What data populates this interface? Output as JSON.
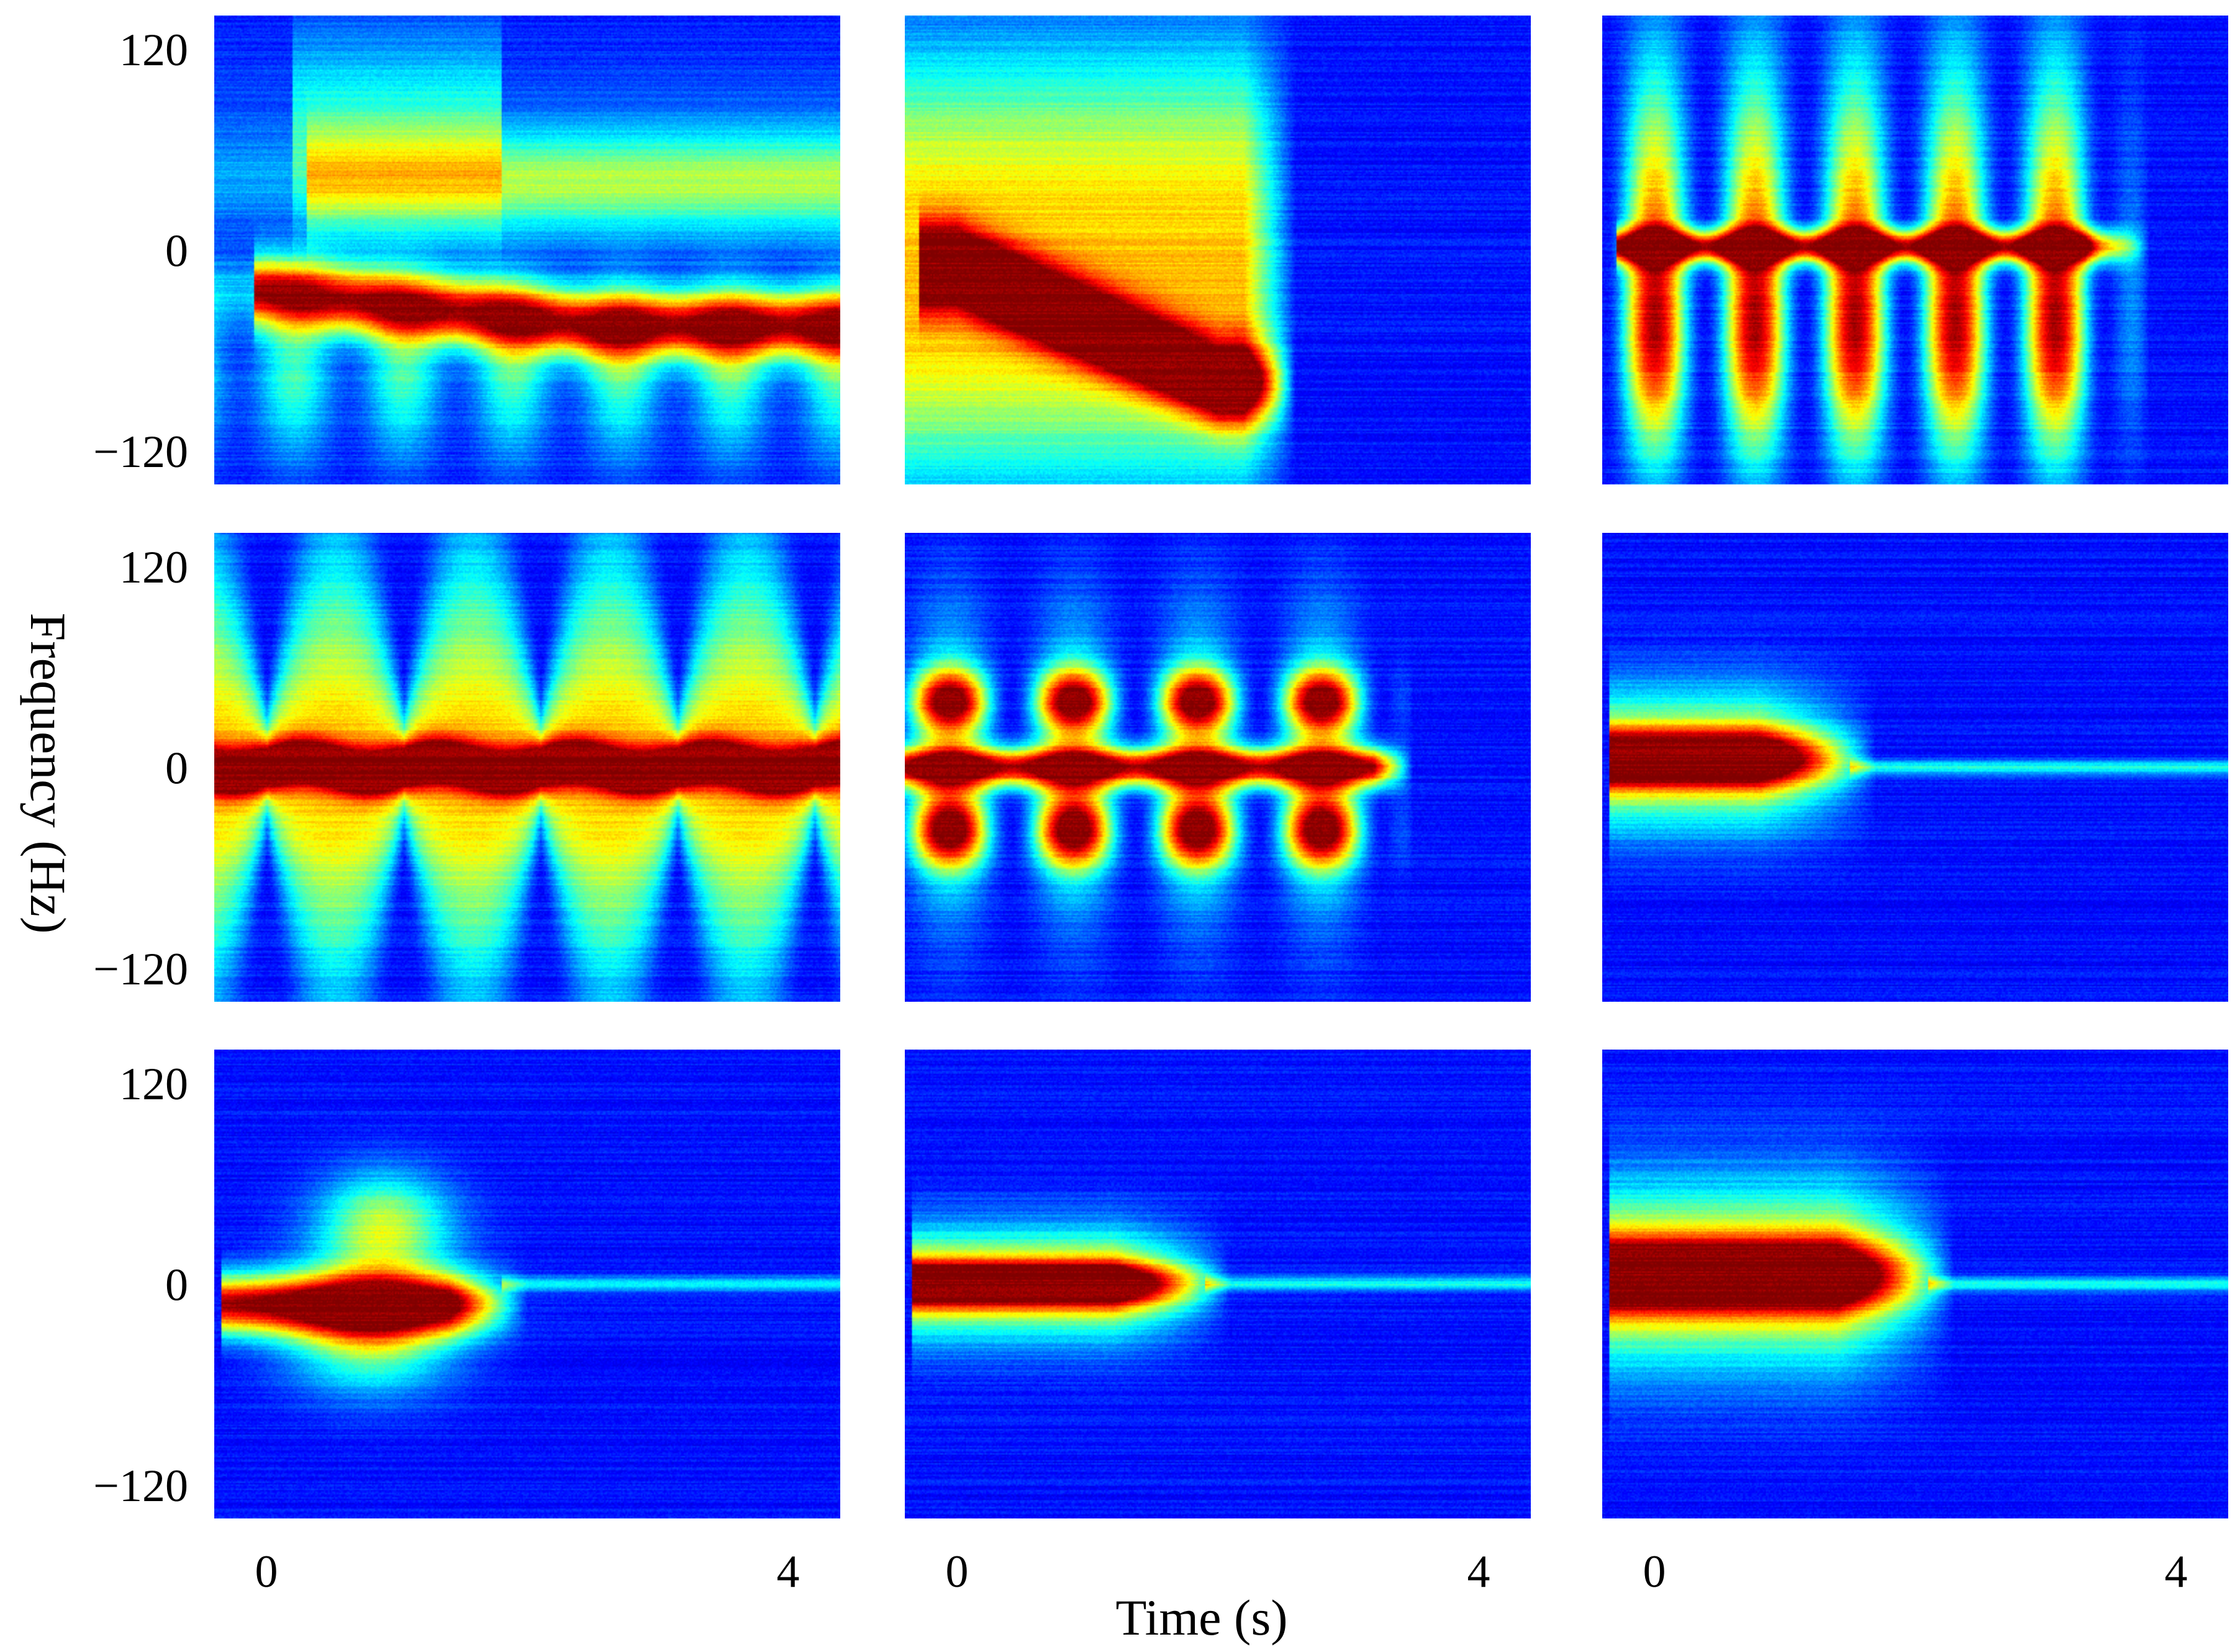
{
  "chart_data": {
    "type": "heatmap",
    "subtype": "micro-Doppler spectrogram grid",
    "grid": {
      "rows": 3,
      "cols": 3
    },
    "colormap": "jet",
    "colormap_stops": [
      "#00008f",
      "#0000ff",
      "#0080ff",
      "#00ffff",
      "#80ff80",
      "#ffff00",
      "#ff8000",
      "#ff0000",
      "#800000"
    ],
    "xlabel": "Time (s)",
    "ylabel": "Frequency (Hz)",
    "xlim": [
      -0.4,
      4.4
    ],
    "ylim": [
      -140,
      140
    ],
    "xticks": [
      {
        "value": 0,
        "label": "0"
      },
      {
        "value": 4,
        "label": "4"
      }
    ],
    "yticks": [
      {
        "value": 120,
        "label": "120"
      },
      {
        "value": 0,
        "label": "0"
      },
      {
        "value": -120,
        "label": "−120"
      }
    ],
    "panels": [
      {
        "row": 0,
        "col": 0,
        "pattern": "walking-away",
        "band": 60,
        "center": -25,
        "drift": -20,
        "activity_end": 4.4
      },
      {
        "row": 0,
        "col": 1,
        "pattern": "fall-sweep",
        "band": 110,
        "center": -60,
        "drift": -70,
        "activity_end": 2.6
      },
      {
        "row": 0,
        "col": 2,
        "pattern": "periodic-bursts",
        "band": 80,
        "bursts": 5,
        "activity_end": 3.8
      },
      {
        "row": 1,
        "col": 0,
        "pattern": "periodic-triangle",
        "band": 100,
        "bursts": 4,
        "activity_end": 4.4
      },
      {
        "row": 1,
        "col": 1,
        "pattern": "periodic-lobes",
        "band": 55,
        "bursts": 4,
        "activity_end": 3.5
      },
      {
        "row": 1,
        "col": 2,
        "pattern": "short-lobe",
        "band": 22,
        "center": 5,
        "activity_end": 1.7
      },
      {
        "row": 2,
        "col": 0,
        "pattern": "double-lobe",
        "band": 50,
        "center": -12,
        "activity_end": 2.0
      },
      {
        "row": 2,
        "col": 1,
        "pattern": "short-lobe",
        "band": 18,
        "center": 0,
        "activity_end": 2.1
      },
      {
        "row": 2,
        "col": 2,
        "pattern": "short-lobe",
        "band": 30,
        "center": 5,
        "activity_end": 2.3
      }
    ]
  }
}
